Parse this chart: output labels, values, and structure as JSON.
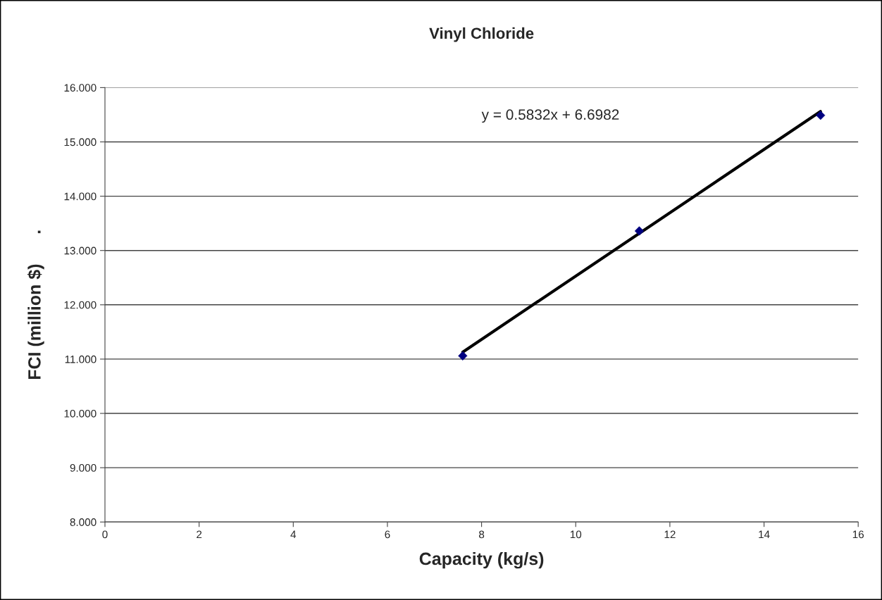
{
  "chart_data": {
    "type": "scatter",
    "title": "Vinyl Chloride",
    "xlabel": "Capacity (kg/s)",
    "ylabel": "FCI (million $)      .",
    "annotations": [
      "y = 0.5832x + 6.6982"
    ],
    "series": [
      {
        "color": "#000080",
        "marker": "diamond",
        "x": [
          7.6,
          11.35,
          15.2
        ],
        "values": [
          11.06,
          13.36,
          15.49
        ]
      },
      {
        "type": "line",
        "color": "#000000",
        "marker": "none",
        "line_style": "solid",
        "x": [
          7.6,
          15.2
        ],
        "values": [
          11.13,
          15.56
        ]
      }
    ],
    "xlim": [
      0,
      16
    ],
    "xticks": [
      0,
      2,
      4,
      6,
      8,
      10,
      12,
      14,
      16
    ],
    "ylim": [
      8,
      16
    ],
    "yticks": [
      {
        "value": 8,
        "label": "8.000"
      },
      {
        "value": 9,
        "label": "9.000"
      },
      {
        "value": 10,
        "label": "10.000"
      },
      {
        "value": 11,
        "label": "11.000"
      },
      {
        "value": 12,
        "label": "12.000"
      },
      {
        "value": 13,
        "label": "13.000"
      },
      {
        "value": 14,
        "label": "14.000"
      },
      {
        "value": 15,
        "label": "15.000"
      },
      {
        "value": 16,
        "label": "16.000"
      }
    ],
    "grid": "y",
    "legend": false
  }
}
